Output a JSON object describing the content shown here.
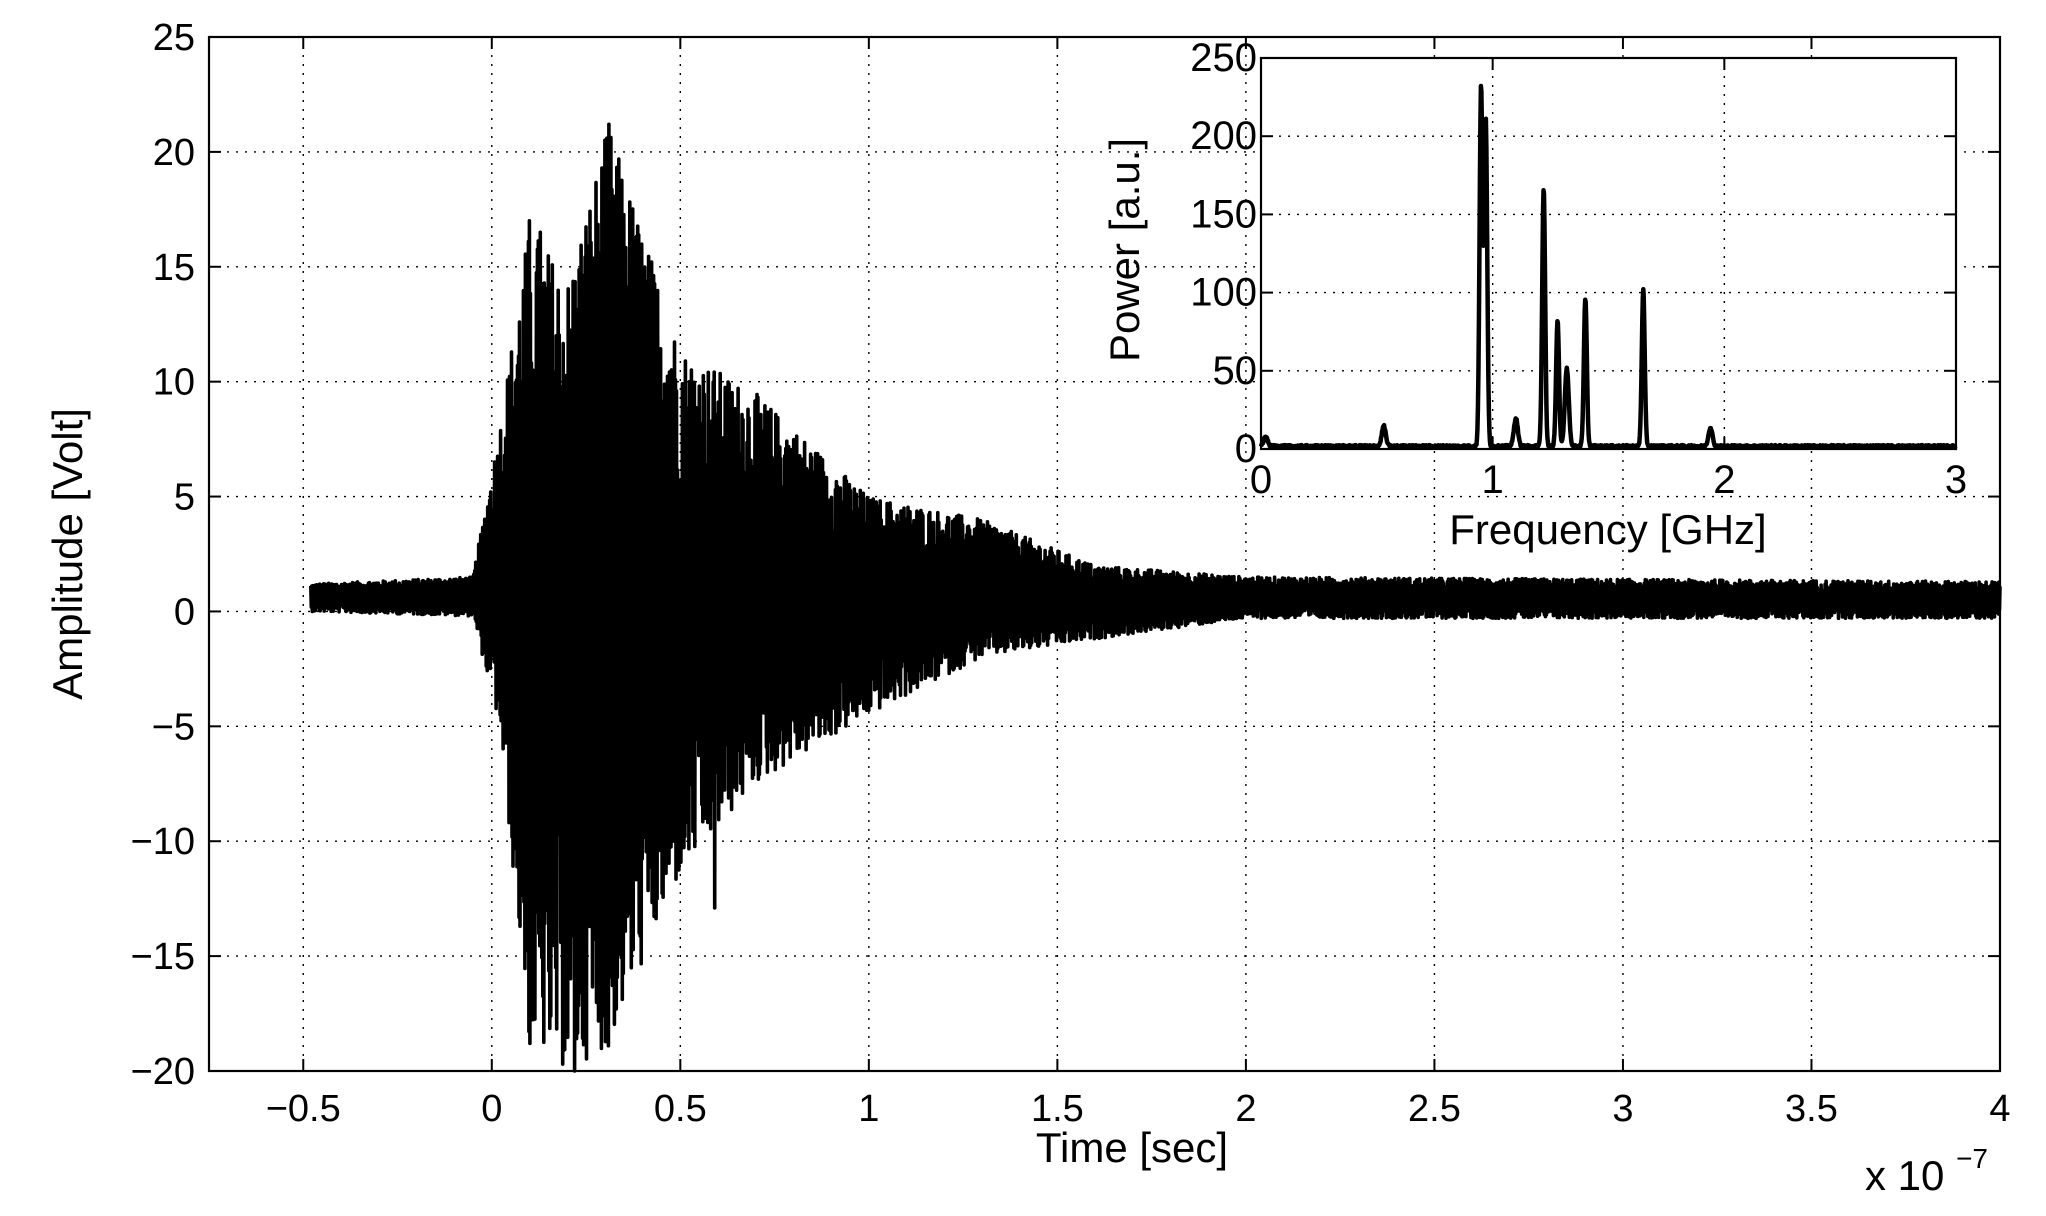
{
  "chart_data": [
    {
      "id": "main",
      "type": "line",
      "title": "",
      "xlabel": "Time [sec]",
      "ylabel": "Amplitude [Volt]",
      "x_multiplier_label": "x 10",
      "x_multiplier_exponent": "−7",
      "x_scale": 1e-07,
      "xlim": [
        -0.75,
        4.0
      ],
      "ylim": [
        -20,
        25
      ],
      "xticks": [
        -0.5,
        0,
        0.5,
        1,
        1.5,
        2,
        2.5,
        3,
        3.5,
        4
      ],
      "xtick_labels": [
        "−0.5",
        "0",
        "0.5",
        "1",
        "1.5",
        "2",
        "2.5",
        "3",
        "3.5",
        "4"
      ],
      "yticks": [
        -20,
        -15,
        -10,
        -5,
        0,
        5,
        10,
        15,
        20,
        25
      ],
      "ytick_labels": [
        "−20",
        "−15",
        "−10",
        "−5",
        "0",
        "5",
        "10",
        "15",
        "20",
        "25"
      ],
      "grid": true,
      "series": [
        {
          "description_of_shape": "noise baseline ~0.6 V from -0.48 to 0 (x1e-7 s); sharp burst starting near 0 with peaks up to ~21 V and troughs to ~-20 V around 0.05–0.35; decaying oscillation envelope through ~1.3; small noise (~±1 V) thereafter to 4",
          "envelope_points": [
            {
              "x": -0.48,
              "upper": 1.2,
              "lower": 0.0
            },
            {
              "x": -0.05,
              "upper": 1.5,
              "lower": -0.2
            },
            {
              "x": 0.02,
              "upper": 8.0,
              "lower": -5.0
            },
            {
              "x": 0.1,
              "upper": 17.0,
              "lower": -18.8
            },
            {
              "x": 0.2,
              "upper": 14.5,
              "lower": -20.0
            },
            {
              "x": 0.31,
              "upper": 21.2,
              "lower": -18.9
            },
            {
              "x": 0.5,
              "upper": 11.5,
              "lower": -11.5
            },
            {
              "x": 0.7,
              "upper": 9.5,
              "lower": -7.5
            },
            {
              "x": 1.0,
              "upper": 5.0,
              "lower": -4.5
            },
            {
              "x": 1.3,
              "upper": 4.0,
              "lower": -2.0
            },
            {
              "x": 1.6,
              "upper": 2.0,
              "lower": -1.2
            },
            {
              "x": 2.0,
              "upper": 1.5,
              "lower": -0.3
            },
            {
              "x": 4.0,
              "upper": 1.3,
              "lower": -0.3
            }
          ],
          "notable_extrema": [
            {
              "x": 0.1,
              "y": 17.0
            },
            {
              "x": 0.13,
              "y": 16.5
            },
            {
              "x": 0.31,
              "y": 21.2
            },
            {
              "x": 0.1,
              "y": -18.8
            },
            {
              "x": 0.22,
              "y": -20.0
            },
            {
              "x": 0.31,
              "y": -18.9
            },
            {
              "x": 0.59,
              "y": -12.9
            }
          ]
        }
      ]
    },
    {
      "id": "inset",
      "type": "line",
      "title": "",
      "xlabel": "Frequency [GHz]",
      "ylabel": "Power [a.u.]",
      "xlim": [
        0,
        3
      ],
      "ylim": [
        0,
        250
      ],
      "xticks": [
        0,
        1,
        2,
        3
      ],
      "xtick_labels": [
        "0",
        "1",
        "2",
        "3"
      ],
      "yticks": [
        0,
        50,
        100,
        150,
        200,
        250
      ],
      "ytick_labels": [
        "0",
        "50",
        "100",
        "150",
        "200",
        "250"
      ],
      "grid": true,
      "series": [
        {
          "peaks": [
            {
              "x": 0.02,
              "y": 6
            },
            {
              "x": 0.53,
              "y": 13
            },
            {
              "x": 0.95,
              "y": 230
            },
            {
              "x": 0.97,
              "y": 210
            },
            {
              "x": 1.1,
              "y": 18
            },
            {
              "x": 1.22,
              "y": 165
            },
            {
              "x": 1.28,
              "y": 80
            },
            {
              "x": 1.32,
              "y": 50
            },
            {
              "x": 1.4,
              "y": 95
            },
            {
              "x": 1.65,
              "y": 101
            },
            {
              "x": 1.94,
              "y": 12
            }
          ],
          "baseline": 1
        }
      ]
    }
  ]
}
